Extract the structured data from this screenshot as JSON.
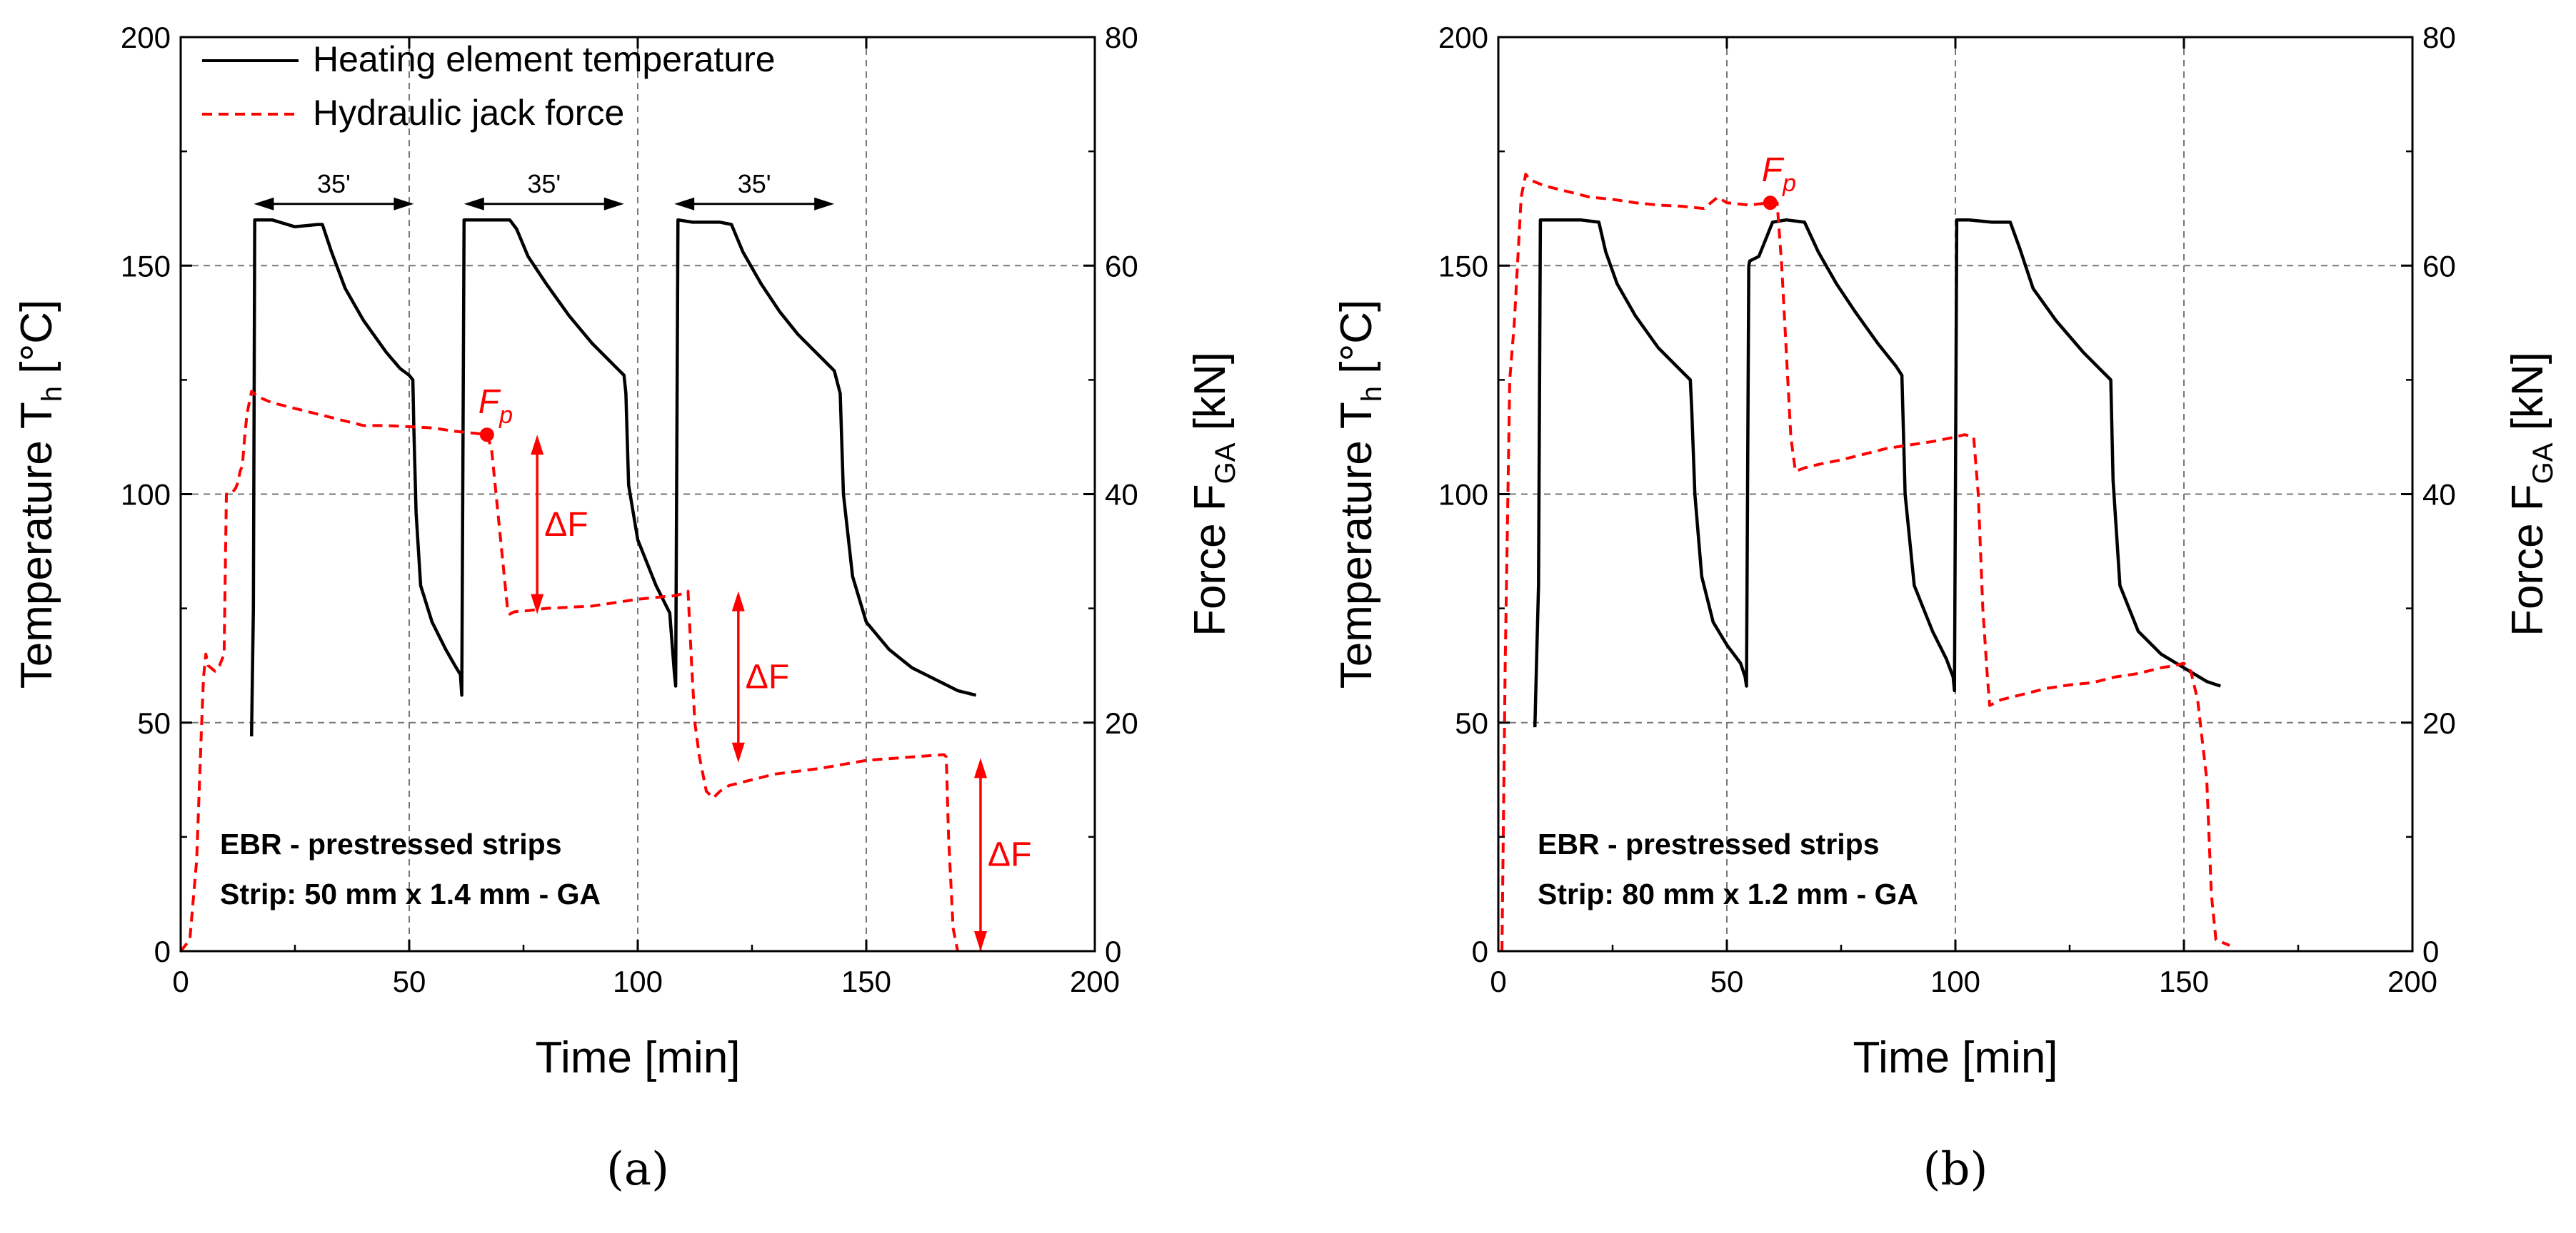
{
  "chart_data": [
    {
      "type": "line",
      "panel_label": "(a)",
      "xlabel": "Time [min]",
      "ylabel": "Temperature T",
      "ylabel_sub": "h",
      "ylabel_unit": " [°C]",
      "y2label": "Force F",
      "y2label_sub": "GA",
      "y2label_unit": " [kN]",
      "xlim": [
        0,
        200
      ],
      "ylim": [
        0,
        200
      ],
      "y2lim": [
        0,
        80
      ],
      "xticks": [
        "0",
        "50",
        "100",
        "150",
        "200"
      ],
      "yticks": [
        "0",
        "50",
        "100",
        "150",
        "200"
      ],
      "y2ticks": [
        "0",
        "20",
        "40",
        "60",
        "80"
      ],
      "grid": true,
      "legend": {
        "position": "top-left",
        "entries": [
          "Heating element temperature",
          "Hydraulic jack force"
        ]
      },
      "annotation_lines": [
        "EBR - prestressed strips",
        "Strip: 50 mm x 1.4 mm - GA"
      ],
      "fp_label": "F",
      "fp_sub": "p",
      "fp_point": [
        67,
        45.2
      ],
      "delta_label": "ΔF",
      "delta_arrows": [
        {
          "x": 78,
          "y2_from": 45.2,
          "y2_to": 29.5
        },
        {
          "x": 122,
          "y2_from": 31.5,
          "y2_to": 16.5
        },
        {
          "x": 175,
          "y2_from": 16.9,
          "y2_to": 0
        }
      ],
      "duration_label": "35'",
      "duration_arrows": [
        [
          16,
          51
        ],
        [
          62,
          97
        ],
        [
          108,
          143
        ]
      ],
      "series": [
        {
          "name": "Heating element temperature",
          "color": "#000000",
          "dash": false,
          "axis": "left",
          "x": [
            15.5,
            15.9,
            16.2,
            20,
            25,
            30,
            31,
            33,
            36,
            40,
            45,
            48,
            50,
            50.8,
            51,
            51.5,
            52.5,
            55,
            58,
            60,
            61.2,
            61.5,
            62,
            65,
            70,
            72,
            73.5,
            76,
            80,
            85,
            90,
            95,
            97,
            97.4,
            98,
            100,
            104,
            107,
            108,
            108.3,
            108.8,
            112,
            118,
            120.5,
            123,
            127,
            131,
            135,
            140,
            143,
            144.3,
            145,
            147,
            150,
            155,
            160,
            165,
            170,
            174
          ],
          "y": [
            47,
            75,
            160,
            160,
            158.5,
            159,
            159,
            153,
            145,
            138,
            131,
            127.5,
            126,
            125,
            115,
            96,
            80,
            72,
            66,
            62.5,
            60.5,
            56,
            160,
            160,
            160,
            160,
            158,
            152,
            146,
            139,
            133,
            128,
            126,
            122,
            102,
            90,
            80,
            74,
            61,
            58,
            160,
            159.5,
            159.5,
            159,
            153,
            146,
            140,
            135,
            130,
            127,
            122,
            100,
            82,
            72,
            66,
            62,
            59.5,
            57,
            56
          ]
        },
        {
          "name": "Hydraulic jack force",
          "color": "#ff0000",
          "dash": true,
          "axis": "right",
          "x": [
            0,
            2,
            3.5,
            4.5,
            5,
            5.5,
            6,
            7.5,
            8.5,
            9.5,
            10,
            11,
            12,
            12.5,
            13,
            13.5,
            14,
            14.5,
            15.5,
            17,
            20,
            25,
            30,
            35,
            40,
            45,
            50,
            55,
            60,
            65,
            67,
            68,
            69,
            70.5,
            71.5,
            72,
            73,
            76,
            80,
            85,
            90,
            95,
            100,
            105,
            108,
            110,
            111,
            111.8,
            112.5,
            113.5,
            115,
            116.5,
            118,
            120,
            125,
            130,
            140,
            150,
            160,
            167,
            167.5,
            168,
            169,
            170
          ],
          "y2": [
            0,
            1,
            8,
            19,
            24,
            26,
            25,
            24.5,
            25,
            26,
            40,
            40,
            40.5,
            41,
            42,
            42.5,
            45,
            47,
            49,
            48.5,
            48,
            47.5,
            47,
            46.5,
            46,
            46,
            45.9,
            45.8,
            45.5,
            45.3,
            45.2,
            44,
            40,
            34,
            30,
            29.5,
            29.7,
            29.8,
            30,
            30.1,
            30.2,
            30.5,
            30.8,
            31,
            31.1,
            31.3,
            31.5,
            25,
            20,
            17,
            14,
            13.4,
            14,
            14.5,
            15,
            15.5,
            16,
            16.7,
            17,
            17.2,
            17,
            10,
            2,
            0
          ]
        }
      ]
    },
    {
      "type": "line",
      "panel_label": "(b)",
      "xlabel": "Time [min]",
      "ylabel": "Temperature T",
      "ylabel_sub": "h",
      "ylabel_unit": " [°C]",
      "y2label": "Force F",
      "y2label_sub": "GA",
      "y2label_unit": " [kN]",
      "xlim": [
        0,
        200
      ],
      "ylim": [
        0,
        200
      ],
      "y2lim": [
        0,
        80
      ],
      "xticks": [
        "0",
        "50",
        "100",
        "150",
        "200"
      ],
      "yticks": [
        "0",
        "50",
        "100",
        "150",
        "200"
      ],
      "y2ticks": [
        "0",
        "20",
        "40",
        "60",
        "80"
      ],
      "grid": true,
      "annotation_lines": [
        "EBR - prestressed strips",
        "Strip: 80 mm x 1.2 mm - GA"
      ],
      "fp_label": "F",
      "fp_sub": "p",
      "fp_point": [
        59.5,
        65.5
      ],
      "series": [
        {
          "name": "Heating element temperature",
          "color": "#000000",
          "dash": false,
          "axis": "left",
          "x": [
            8,
            8.4,
            8.8,
            9.2,
            13,
            18,
            22,
            23.5,
            26,
            30,
            35,
            40,
            42,
            42.3,
            43,
            44.5,
            47,
            50,
            53,
            54,
            54.3,
            54.8,
            55,
            57,
            60,
            63,
            67,
            70,
            74,
            78,
            83,
            87,
            88.3,
            89,
            91,
            95,
            98,
            99.5,
            99.8,
            100.3,
            103,
            108,
            112,
            114,
            117,
            122,
            128,
            132,
            134,
            134.5,
            136,
            140,
            145,
            150,
            155,
            158
          ],
          "y": [
            49,
            65,
            80,
            160,
            160,
            160,
            159.5,
            153,
            146,
            139,
            132,
            127,
            125,
            119,
            100,
            82,
            72,
            67,
            63,
            60,
            58,
            150,
            151,
            152,
            159.5,
            160,
            159.5,
            153,
            146,
            140,
            133,
            128,
            126,
            100,
            80,
            70,
            64,
            60,
            57,
            160,
            160,
            159.5,
            159.5,
            154,
            145,
            138,
            131,
            127,
            125,
            103,
            80,
            70,
            65,
            62,
            59,
            58
          ]
        },
        {
          "name": "Hydraulic jack force",
          "color": "#ff0000",
          "dash": true,
          "axis": "right",
          "x": [
            0.8,
            1.5,
            2.5,
            3.5,
            5,
            6,
            7,
            10,
            15,
            20,
            25,
            30,
            35,
            40,
            45,
            48,
            50,
            55,
            57,
            59.5,
            61,
            62,
            64,
            65,
            67,
            70,
            75,
            80,
            85,
            90,
            95,
            100,
            102,
            104,
            105,
            106,
            107,
            107.5,
            110,
            115,
            120,
            125,
            130,
            135,
            140,
            145,
            148,
            150,
            151.5,
            153,
            155,
            156,
            157,
            160
          ],
          "y2": [
            0,
            25,
            50,
            55,
            66,
            68,
            67.5,
            67,
            66.5,
            66,
            65.8,
            65.5,
            65.3,
            65.2,
            65,
            66,
            65.5,
            65.3,
            65.4,
            65.5,
            65.5,
            60,
            45,
            42,
            42.3,
            42.6,
            43,
            43.5,
            44,
            44.3,
            44.6,
            45,
            45.2,
            45,
            40,
            30,
            24,
            21.5,
            22,
            22.5,
            23,
            23.3,
            23.5,
            24,
            24.3,
            24.8,
            25,
            25.2,
            24.5,
            22,
            15,
            5,
            1,
            0.5
          ]
        }
      ]
    }
  ]
}
